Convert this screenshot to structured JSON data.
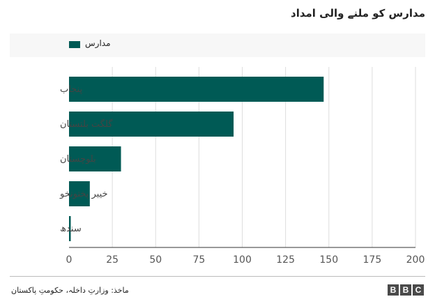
{
  "chart_data": {
    "type": "bar",
    "orientation": "horizontal",
    "title": "مدارس کو ملنے والی امداد",
    "categories": [
      "پنجاب",
      "گلگت بلتستان",
      "بلوچستان",
      "خیبر پختونخو",
      "سندھ"
    ],
    "series": [
      {
        "name": "مدارس",
        "values": [
          147,
          95,
          30,
          12,
          1
        ]
      }
    ],
    "xlim": [
      0,
      200
    ],
    "xticks": [
      0,
      25,
      50,
      75,
      100,
      125,
      150,
      175,
      200
    ],
    "grid": true,
    "legend": "top-left",
    "bar_color": "#005a55"
  },
  "source": "ماخذ: وزارتِ داخلہ، حکومتِ پاکستان",
  "logo": {
    "letters": [
      "B",
      "B",
      "C"
    ]
  }
}
